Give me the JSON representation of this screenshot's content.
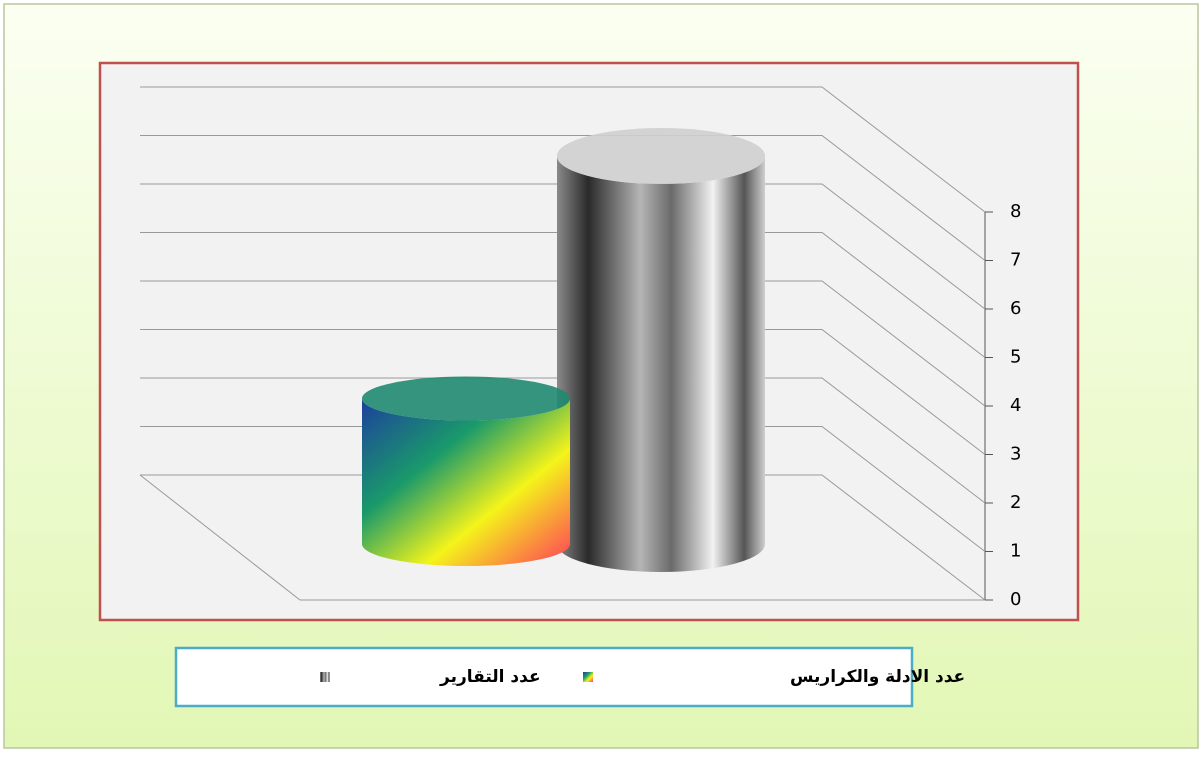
{
  "chart_data": {
    "type": "cylinder3d",
    "categories": [
      null
    ],
    "series": [
      {
        "name": "عدد الادلة والكراريس",
        "color": "#1f8a70",
        "values": [
          3
        ]
      },
      {
        "name": "عدد التقارير",
        "color": "#cfcfcf",
        "values": [
          8
        ]
      }
    ],
    "ylim": [
      0,
      8
    ],
    "yticks": [
      0,
      1,
      2,
      3,
      4,
      5,
      6,
      7,
      8
    ],
    "grid": true
  }
}
